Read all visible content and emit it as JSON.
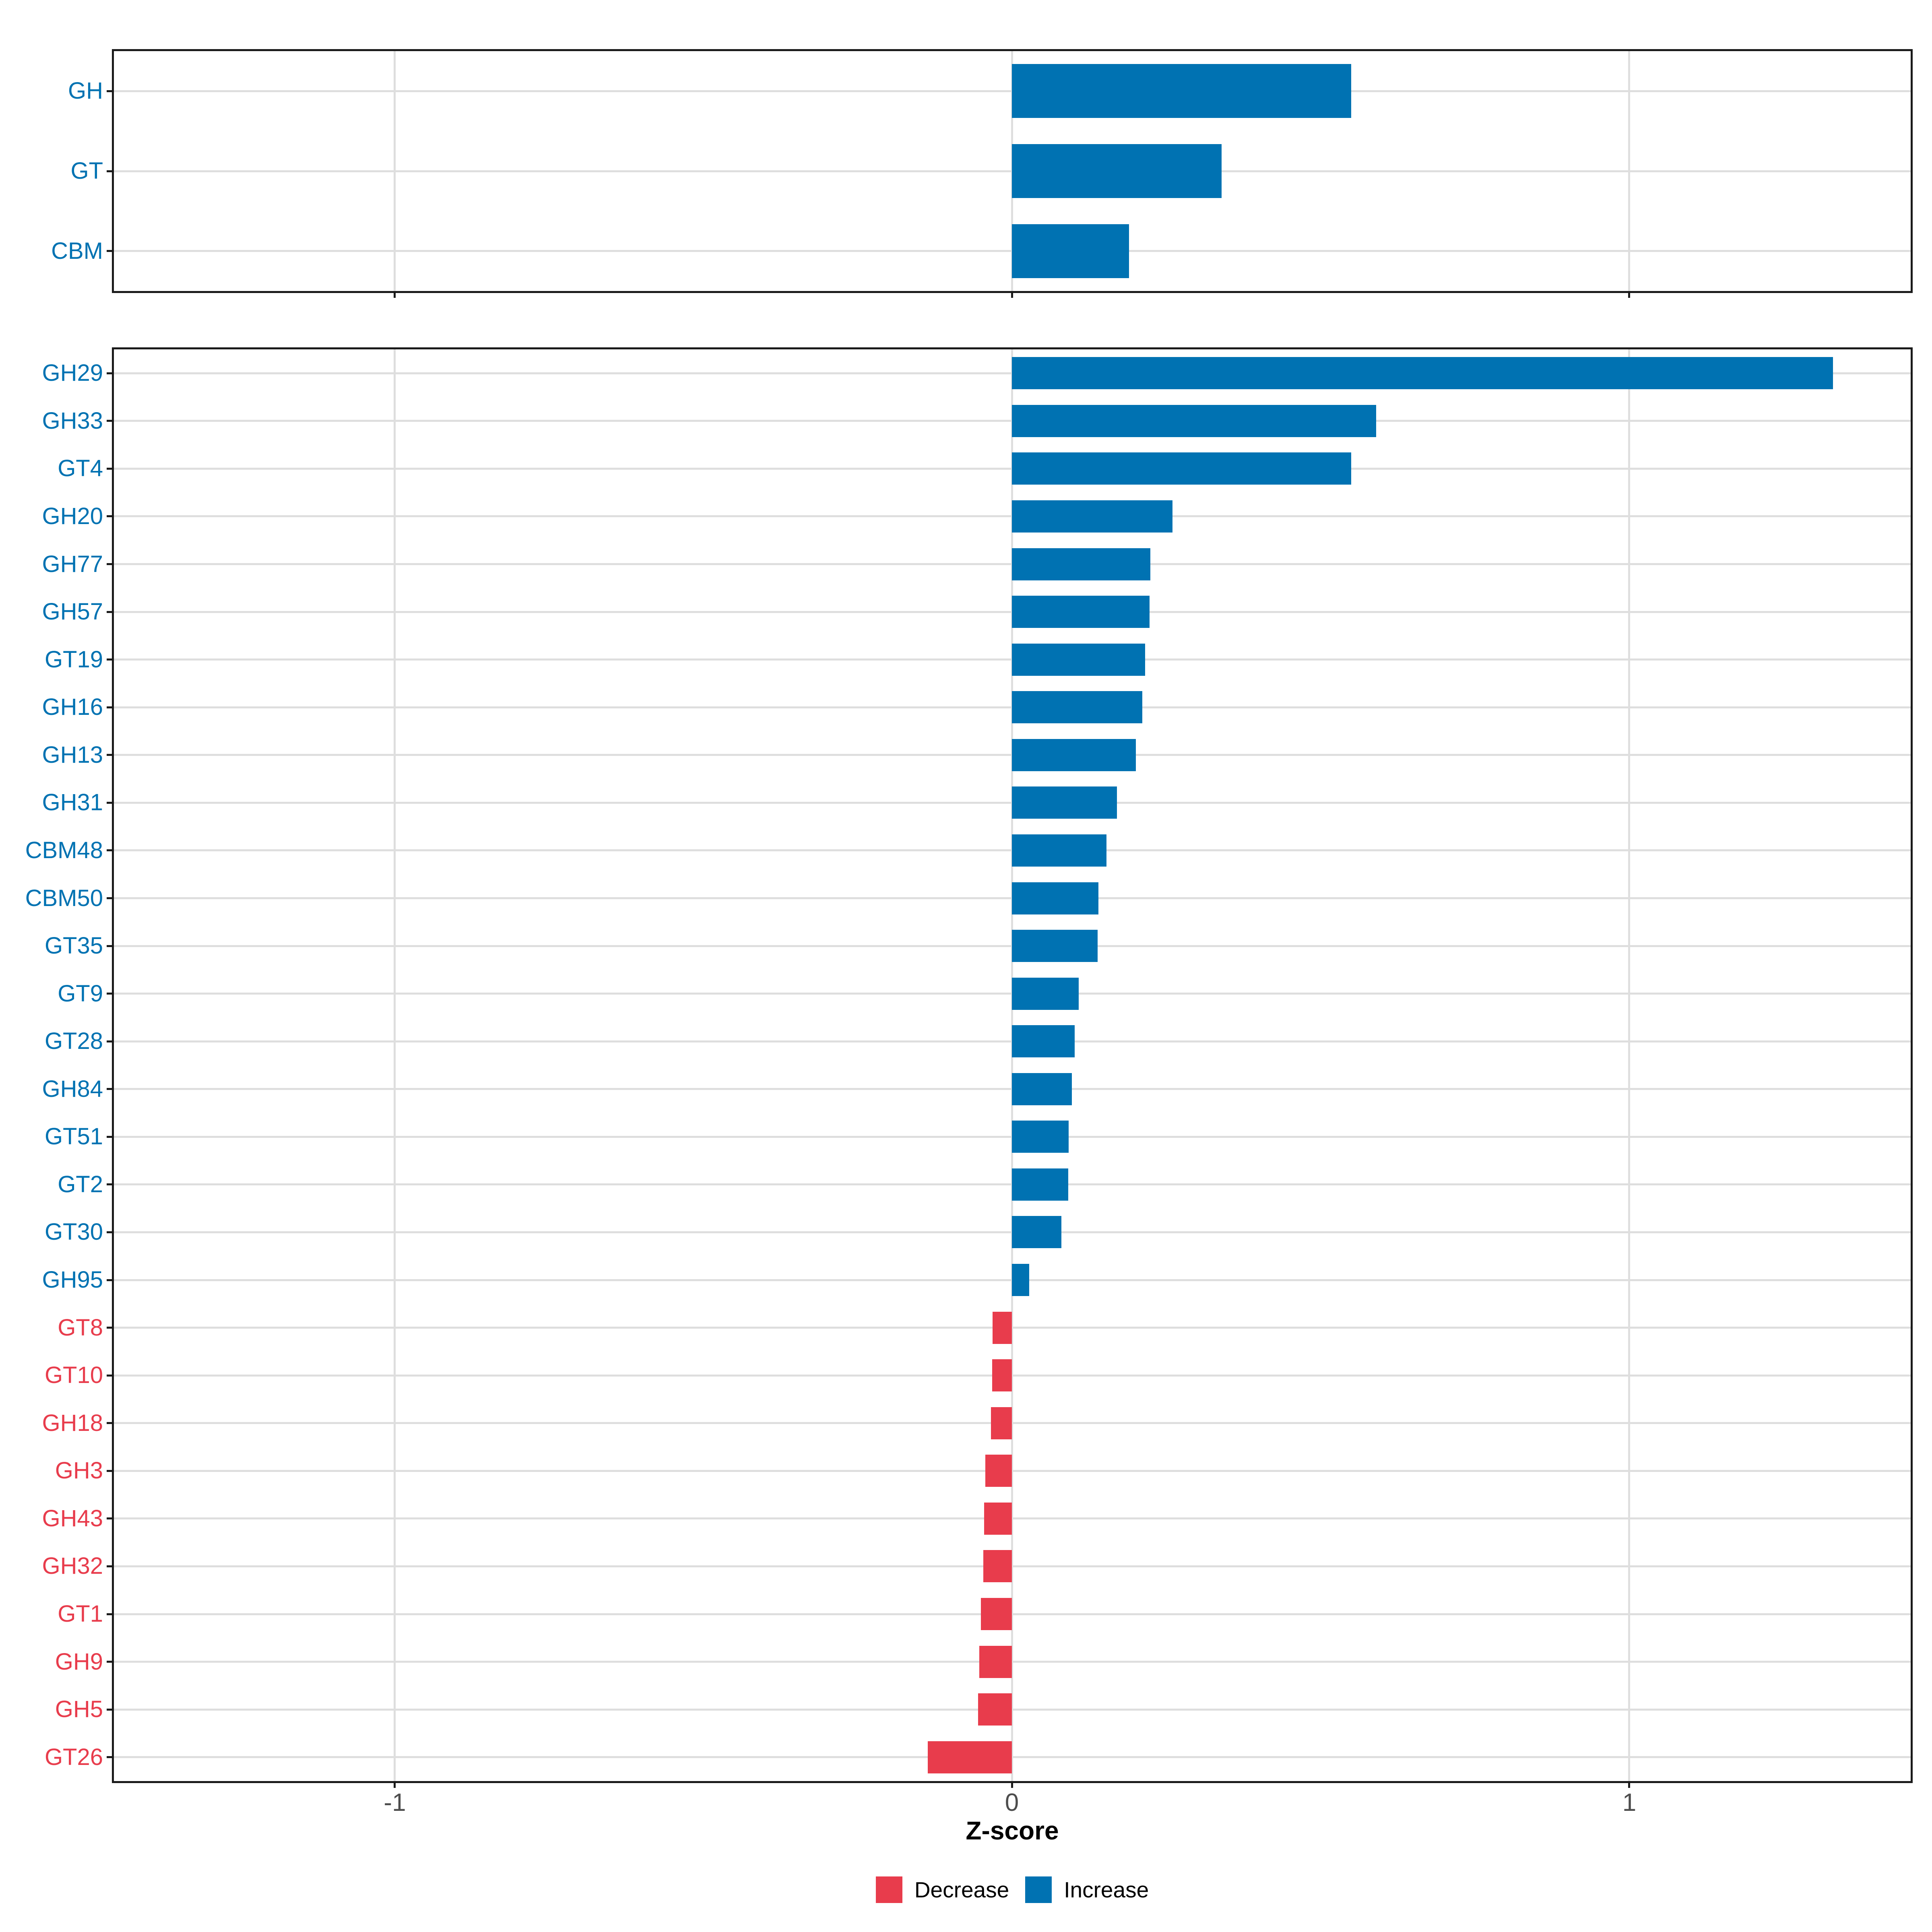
{
  "chart_data": [
    {
      "id": "cazyme_classes",
      "type": "bar",
      "orientation": "horizontal",
      "title": "",
      "xlabel": "Z-score",
      "ylabel": "",
      "xlim": [
        -1.46,
        1.46
      ],
      "grid": true,
      "legend_position": "bottom",
      "categories": [
        "GH",
        "GT",
        "CBM"
      ],
      "values": [
        0.55,
        0.34,
        0.19
      ],
      "directions": [
        "increase",
        "increase",
        "increase"
      ]
    },
    {
      "id": "cazyme_families",
      "type": "bar",
      "orientation": "horizontal",
      "title": "",
      "xlabel": "Z-score",
      "ylabel": "",
      "xlim": [
        -1.46,
        1.46
      ],
      "grid": true,
      "legend_position": "bottom",
      "categories": [
        "GH29",
        "GH33",
        "GT4",
        "GH20",
        "GH77",
        "GH57",
        "GT19",
        "GH16",
        "GH13",
        "GH31",
        "CBM48",
        "CBM50",
        "GT35",
        "GT9",
        "GT28",
        "GH84",
        "GT51",
        "GT2",
        "GT30",
        "GH95",
        "GT8",
        "GT10",
        "GH18",
        "GH3",
        "GH43",
        "GH32",
        "GT1",
        "GH9",
        "GH5",
        "GT26"
      ],
      "values": [
        1.33,
        0.59,
        0.55,
        0.26,
        0.224,
        0.223,
        0.216,
        0.211,
        0.201,
        0.17,
        0.153,
        0.14,
        0.139,
        0.108,
        0.102,
        0.097,
        0.092,
        0.091,
        0.08,
        0.028,
        -0.031,
        -0.032,
        -0.034,
        -0.043,
        -0.045,
        -0.046,
        -0.05,
        -0.053,
        -0.055,
        -0.136
      ],
      "directions": [
        "increase",
        "increase",
        "increase",
        "increase",
        "increase",
        "increase",
        "increase",
        "increase",
        "increase",
        "increase",
        "increase",
        "increase",
        "increase",
        "increase",
        "increase",
        "increase",
        "increase",
        "increase",
        "increase",
        "increase",
        "decrease",
        "decrease",
        "decrease",
        "decrease",
        "decrease",
        "decrease",
        "decrease",
        "decrease",
        "decrease",
        "decrease"
      ]
    }
  ],
  "axis": {
    "xlabel": "Z-score",
    "tick_values": [
      -1,
      0,
      1
    ],
    "tick_labels": [
      "-1",
      "0",
      "1"
    ]
  },
  "legend": {
    "items": [
      {
        "key": "decrease",
        "label": "Decrease",
        "color": "#e83c4c"
      },
      {
        "key": "increase",
        "label": "Increase",
        "color": "#0072b2"
      }
    ]
  },
  "colors": {
    "increase": "#0072b2",
    "decrease": "#e83c4c",
    "gridline": "#dedede",
    "panel_border": "#1a1a1a",
    "tick": "#1a1a1a",
    "axis_text": "#4d4d4d",
    "xlabel_text": "#000000",
    "background": "#ffffff"
  }
}
